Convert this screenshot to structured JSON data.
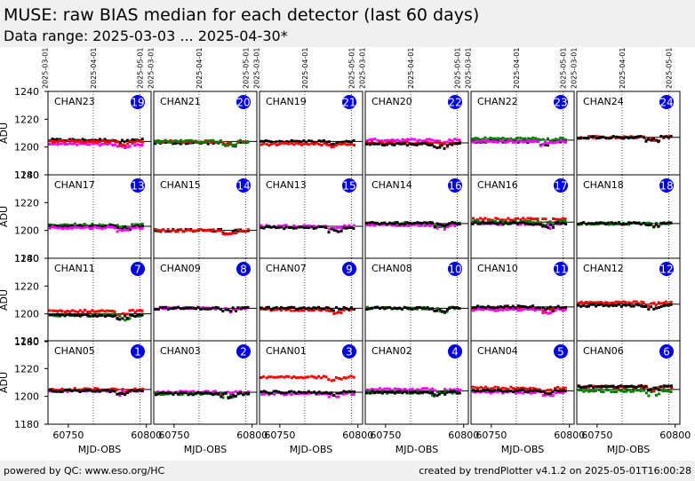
{
  "header": {
    "title": "MUSE: raw BIAS median for each detector (last 60 days)",
    "subtitle": "Data range: 2025-03-03 ... 2025-04-30*"
  },
  "footer": {
    "left": "powered by QC: www.eso.org/HC",
    "right": "created by trendPlotter v4.1.2 on 2025-05-01T16:00:28"
  },
  "chart_data": {
    "type": "scatter",
    "layout": "grid 4 rows x 6 columns",
    "ylabel": "ADU",
    "xlabel": "MJD-OBS",
    "xlim": [
      60737,
      60803
    ],
    "ylim": [
      1180,
      1240
    ],
    "y_ticks": [
      1180,
      1200,
      1220,
      1240
    ],
    "x_ticks": [
      60750,
      60800
    ],
    "top_date_ticks": [
      {
        "label": "2025-03-01",
        "x": 60735
      },
      {
        "label": "2025-04-01",
        "x": 60766
      },
      {
        "label": "2025-05-01",
        "x": 60796
      }
    ],
    "panels": [
      {
        "channel": "CHAN23",
        "number": "19",
        "baseline": 1204,
        "series": [
          {
            "color": "#000000",
            "level": 1205
          },
          {
            "color": "#ff00ff",
            "level": 1202
          },
          {
            "color": "#ff0000",
            "level": 1204
          }
        ]
      },
      {
        "channel": "CHAN21",
        "number": "20",
        "baseline": 1204,
        "series": [
          {
            "color": "#000000",
            "level": 1203
          },
          {
            "color": "#ff0000",
            "level": 1204
          },
          {
            "color": "#008000",
            "level": 1204
          }
        ]
      },
      {
        "channel": "CHAN19",
        "number": "21",
        "baseline": 1204,
        "series": [
          {
            "color": "#000000",
            "level": 1204
          },
          {
            "color": "#ff0000",
            "level": 1202
          }
        ]
      },
      {
        "channel": "CHAN20",
        "number": "22",
        "baseline": 1203,
        "series": [
          {
            "color": "#ff00ff",
            "level": 1205
          },
          {
            "color": "#ff0000",
            "level": 1203
          },
          {
            "color": "#000000",
            "level": 1202
          }
        ]
      },
      {
        "channel": "CHAN22",
        "number": "23",
        "baseline": 1205,
        "series": [
          {
            "color": "#000000",
            "level": 1204
          },
          {
            "color": "#008000",
            "level": 1206
          },
          {
            "color": "#ff00ff",
            "level": 1204
          }
        ]
      },
      {
        "channel": "CHAN24",
        "number": "24",
        "baseline": 1207,
        "series": [
          {
            "color": "#ff0000",
            "level": 1207
          },
          {
            "color": "#000000",
            "level": 1207
          }
        ]
      },
      {
        "channel": "CHAN17",
        "number": "13",
        "baseline": 1203,
        "series": [
          {
            "color": "#008000",
            "level": 1204
          },
          {
            "color": "#000000",
            "level": 1203
          },
          {
            "color": "#ff00ff",
            "level": 1202
          }
        ]
      },
      {
        "channel": "CHAN15",
        "number": "14",
        "baseline": 1200,
        "series": [
          {
            "color": "#000000",
            "level": 1200
          },
          {
            "color": "#ff0000",
            "level": 1200
          }
        ]
      },
      {
        "channel": "CHAN13",
        "number": "15",
        "baseline": 1203,
        "series": [
          {
            "color": "#ff00ff",
            "level": 1203
          },
          {
            "color": "#000000",
            "level": 1202
          }
        ]
      },
      {
        "channel": "CHAN14",
        "number": "16",
        "baseline": 1205,
        "series": [
          {
            "color": "#008000",
            "level": 1205
          },
          {
            "color": "#ff00ff",
            "level": 1204
          },
          {
            "color": "#000000",
            "level": 1205
          }
        ]
      },
      {
        "channel": "CHAN16",
        "number": "17",
        "baseline": 1206,
        "series": [
          {
            "color": "#ff0000",
            "level": 1208
          },
          {
            "color": "#ff00ff",
            "level": 1205
          },
          {
            "color": "#008000",
            "level": 1206
          },
          {
            "color": "#000000",
            "level": 1205
          }
        ]
      },
      {
        "channel": "CHAN18",
        "number": "18",
        "baseline": 1205,
        "series": [
          {
            "color": "#008000",
            "level": 1205
          },
          {
            "color": "#000000",
            "level": 1205
          }
        ]
      },
      {
        "channel": "CHAN11",
        "number": "7",
        "baseline": 1200,
        "series": [
          {
            "color": "#ff0000",
            "level": 1202
          },
          {
            "color": "#008000",
            "level": 1199
          },
          {
            "color": "#000000",
            "level": 1199
          }
        ]
      },
      {
        "channel": "CHAN09",
        "number": "8",
        "baseline": 1204,
        "series": [
          {
            "color": "#ff00ff",
            "level": 1204
          },
          {
            "color": "#000000",
            "level": 1204
          }
        ]
      },
      {
        "channel": "CHAN07",
        "number": "9",
        "baseline": 1204,
        "series": [
          {
            "color": "#ff0000",
            "level": 1203
          },
          {
            "color": "#000000",
            "level": 1204
          }
        ]
      },
      {
        "channel": "CHAN08",
        "number": "10",
        "baseline": 1204,
        "series": [
          {
            "color": "#008000",
            "level": 1204
          },
          {
            "color": "#000000",
            "level": 1204
          }
        ]
      },
      {
        "channel": "CHAN10",
        "number": "11",
        "baseline": 1205,
        "series": [
          {
            "color": "#ff0000",
            "level": 1204
          },
          {
            "color": "#ff00ff",
            "level": 1203
          },
          {
            "color": "#000000",
            "level": 1205
          }
        ]
      },
      {
        "channel": "CHAN12",
        "number": "12",
        "baseline": 1207,
        "series": [
          {
            "color": "#ff0000",
            "level": 1208
          },
          {
            "color": "#000000",
            "level": 1206
          }
        ]
      },
      {
        "channel": "CHAN05",
        "number": "1",
        "baseline": 1205,
        "series": [
          {
            "color": "#ff00ff",
            "level": 1204
          },
          {
            "color": "#ff0000",
            "level": 1205
          },
          {
            "color": "#000000",
            "level": 1204
          }
        ]
      },
      {
        "channel": "CHAN03",
        "number": "2",
        "baseline": 1203,
        "series": [
          {
            "color": "#ff00ff",
            "level": 1203
          },
          {
            "color": "#008000",
            "level": 1202
          },
          {
            "color": "#000000",
            "level": 1202
          }
        ]
      },
      {
        "channel": "CHAN01",
        "number": "3",
        "baseline": 1203,
        "series": [
          {
            "color": "#ff0000",
            "level": 1214
          },
          {
            "color": "#ff00ff",
            "level": 1202
          },
          {
            "color": "#000000",
            "level": 1203
          }
        ]
      },
      {
        "channel": "CHAN02",
        "number": "4",
        "baseline": 1204,
        "series": [
          {
            "color": "#ff00ff",
            "level": 1205
          },
          {
            "color": "#008000",
            "level": 1203
          },
          {
            "color": "#000000",
            "level": 1203
          }
        ]
      },
      {
        "channel": "CHAN04",
        "number": "5",
        "baseline": 1204,
        "series": [
          {
            "color": "#ff0000",
            "level": 1206
          },
          {
            "color": "#ff00ff",
            "level": 1203
          },
          {
            "color": "#000000",
            "level": 1204
          }
        ]
      },
      {
        "channel": "CHAN06",
        "number": "6",
        "baseline": 1205,
        "series": [
          {
            "color": "#008000",
            "level": 1204
          },
          {
            "color": "#ff0000",
            "level": 1207
          },
          {
            "color": "#000000",
            "level": 1207
          }
        ]
      }
    ]
  }
}
